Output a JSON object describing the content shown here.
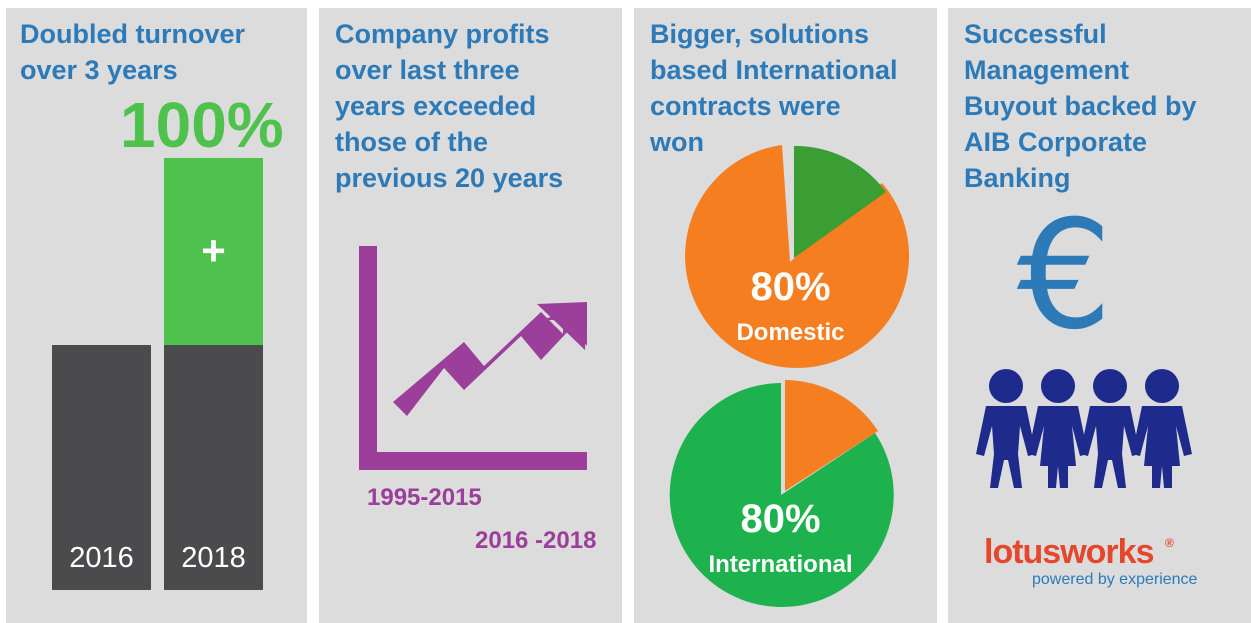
{
  "panel1": {
    "title": "Doubled turnover\nover 3 years",
    "big_percent": "100%",
    "plus_sign": "+",
    "bars": [
      {
        "label": "2016",
        "value": 1
      },
      {
        "label": "2018",
        "value": 2
      }
    ]
  },
  "panel2": {
    "title": "Company profits\nover last three\nyears exceeded\nthose of the\nprevious 20 years",
    "range1": "1995-2015",
    "range2": "2016 -2018"
  },
  "panel3": {
    "title": "Bigger, solutions\nbased International\ncontracts were\nwon",
    "domestic": {
      "percent": "80%",
      "label": "Domestic",
      "value": 80
    },
    "international": {
      "percent": "80%",
      "label": "International",
      "value": 80
    }
  },
  "panel4": {
    "title": "Successful\nManagement\nBuyout backed by\nAIB Corporate\nBanking",
    "euro_symbol": "€",
    "logo": "lotusworks",
    "logo_mark": "®",
    "tagline": "powered by experience"
  },
  "colors": {
    "blue": "#2d7ab8",
    "green": "#4ec24c",
    "dark_green": "#3a9e34",
    "orange": "#f57e20",
    "purple": "#9b3f9a",
    "dark_bar": "#4b4b4d",
    "navy": "#1e2a8c",
    "red": "#e5462c"
  }
}
